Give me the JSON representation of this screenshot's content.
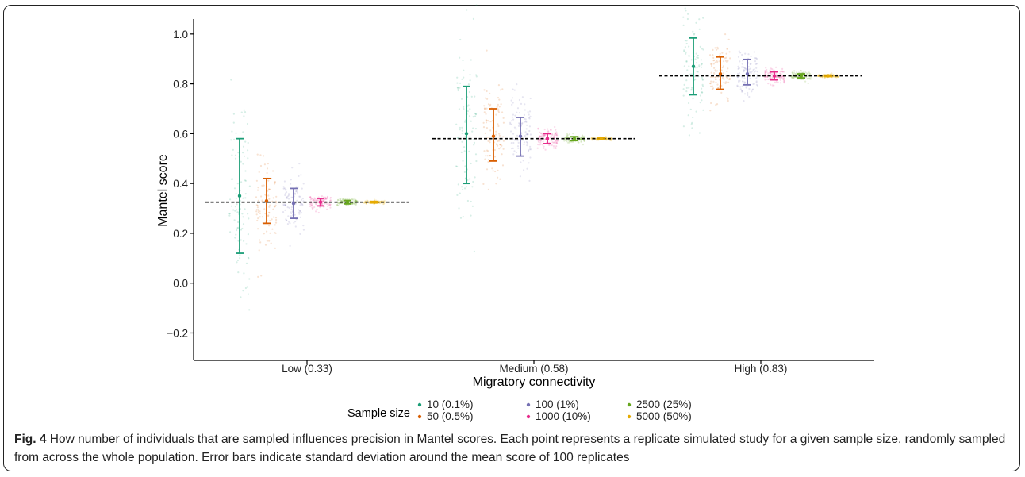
{
  "figure": {
    "label": "Fig. 4",
    "caption": " How number of individuals that are sampled influences precision in Mantel scores. Each point represents a replicate simulated study for a given sample size, randomly sampled from across the whole population. Error bars indicate standard deviation around the mean score of 100 replicates"
  },
  "chart_data": {
    "type": "scatter",
    "subtype": "jitter points with mean and standard-deviation error bars, dashed reference line per group",
    "xlabel": "Migratory connectivity",
    "ylabel": "Mantel score",
    "ylim": [
      -0.31,
      1.06
    ],
    "yticks": [
      -0.2,
      0.0,
      0.2,
      0.4,
      0.6,
      0.8,
      1.0
    ],
    "ytick_labels": [
      "−0.2",
      "0.0",
      "0.2",
      "0.4",
      "0.6",
      "0.8",
      "1.0"
    ],
    "categories": [
      "Low (0.33)",
      "Medium (0.58)",
      "High (0.83)"
    ],
    "reference_values": [
      0.325,
      0.58,
      0.832
    ],
    "grid": false,
    "legend": {
      "title": "Sample size",
      "placement": "bottom",
      "entries": [
        "10 (0.1%)",
        "50 (0.5%)",
        "100 (1%)",
        "1000 (10%)",
        "2500 (25%)",
        "5000 (50%)"
      ]
    },
    "colors": [
      "#1b9e77",
      "#d95f02",
      "#7570b3",
      "#e7298a",
      "#66a61e",
      "#e6ab02"
    ],
    "replicates_per_group": 100,
    "series": [
      {
        "name": "10 (0.1%)",
        "mean": [
          0.35,
          0.6,
          0.87
        ],
        "lower": [
          0.12,
          0.4,
          0.756
        ],
        "upper": [
          0.58,
          0.79,
          0.984
        ]
      },
      {
        "name": "50 (0.5%)",
        "mean": [
          0.33,
          0.59,
          0.84
        ],
        "lower": [
          0.24,
          0.49,
          0.778
        ],
        "upper": [
          0.42,
          0.7,
          0.908
        ]
      },
      {
        "name": "100 (1%)",
        "mean": [
          0.32,
          0.59,
          0.84
        ],
        "lower": [
          0.26,
          0.51,
          0.796
        ],
        "upper": [
          0.38,
          0.665,
          0.898
        ]
      },
      {
        "name": "1000 (10%)",
        "mean": [
          0.325,
          0.58,
          0.832
        ],
        "lower": [
          0.31,
          0.56,
          0.816
        ],
        "upper": [
          0.34,
          0.6,
          0.848
        ]
      },
      {
        "name": "2500 (25%)",
        "mean": [
          0.325,
          0.58,
          0.832
        ],
        "lower": [
          0.318,
          0.572,
          0.824
        ],
        "upper": [
          0.332,
          0.588,
          0.84
        ]
      },
      {
        "name": "5000 (50%)",
        "mean": [
          0.325,
          0.58,
          0.832
        ],
        "lower": [
          0.322,
          0.577,
          0.829
        ],
        "upper": [
          0.328,
          0.583,
          0.835
        ]
      }
    ]
  }
}
